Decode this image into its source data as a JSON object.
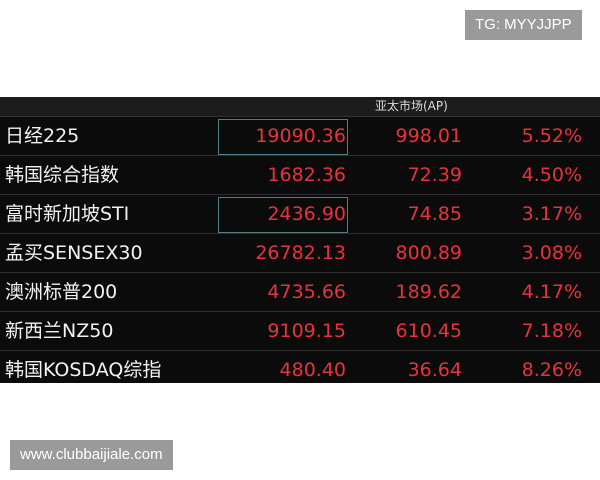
{
  "watermark_top": "TG: MYYJJPP",
  "table": {
    "header": "亚太市场(AP)",
    "rows": [
      [
        "日经225",
        "19090.36",
        "998.01",
        "5.52%"
      ],
      [
        "韩国综合指数",
        "1682.36",
        "72.39",
        "4.50%"
      ],
      [
        "富时新加坡STI",
        "2436.90",
        "74.85",
        "3.17%"
      ],
      [
        "孟买SENSEX30",
        "26782.13",
        "800.89",
        "3.08%"
      ],
      [
        "澳洲标普200",
        "4735.66",
        "189.62",
        "4.17%"
      ],
      [
        "新西兰NZ50",
        "9109.15",
        "610.45",
        "7.18%"
      ],
      [
        "韩国KOSDAQ综指",
        "480.40",
        "36.64",
        "8.26%"
      ]
    ]
  },
  "watermark_bottom": "www.clubbaijiale.com"
}
